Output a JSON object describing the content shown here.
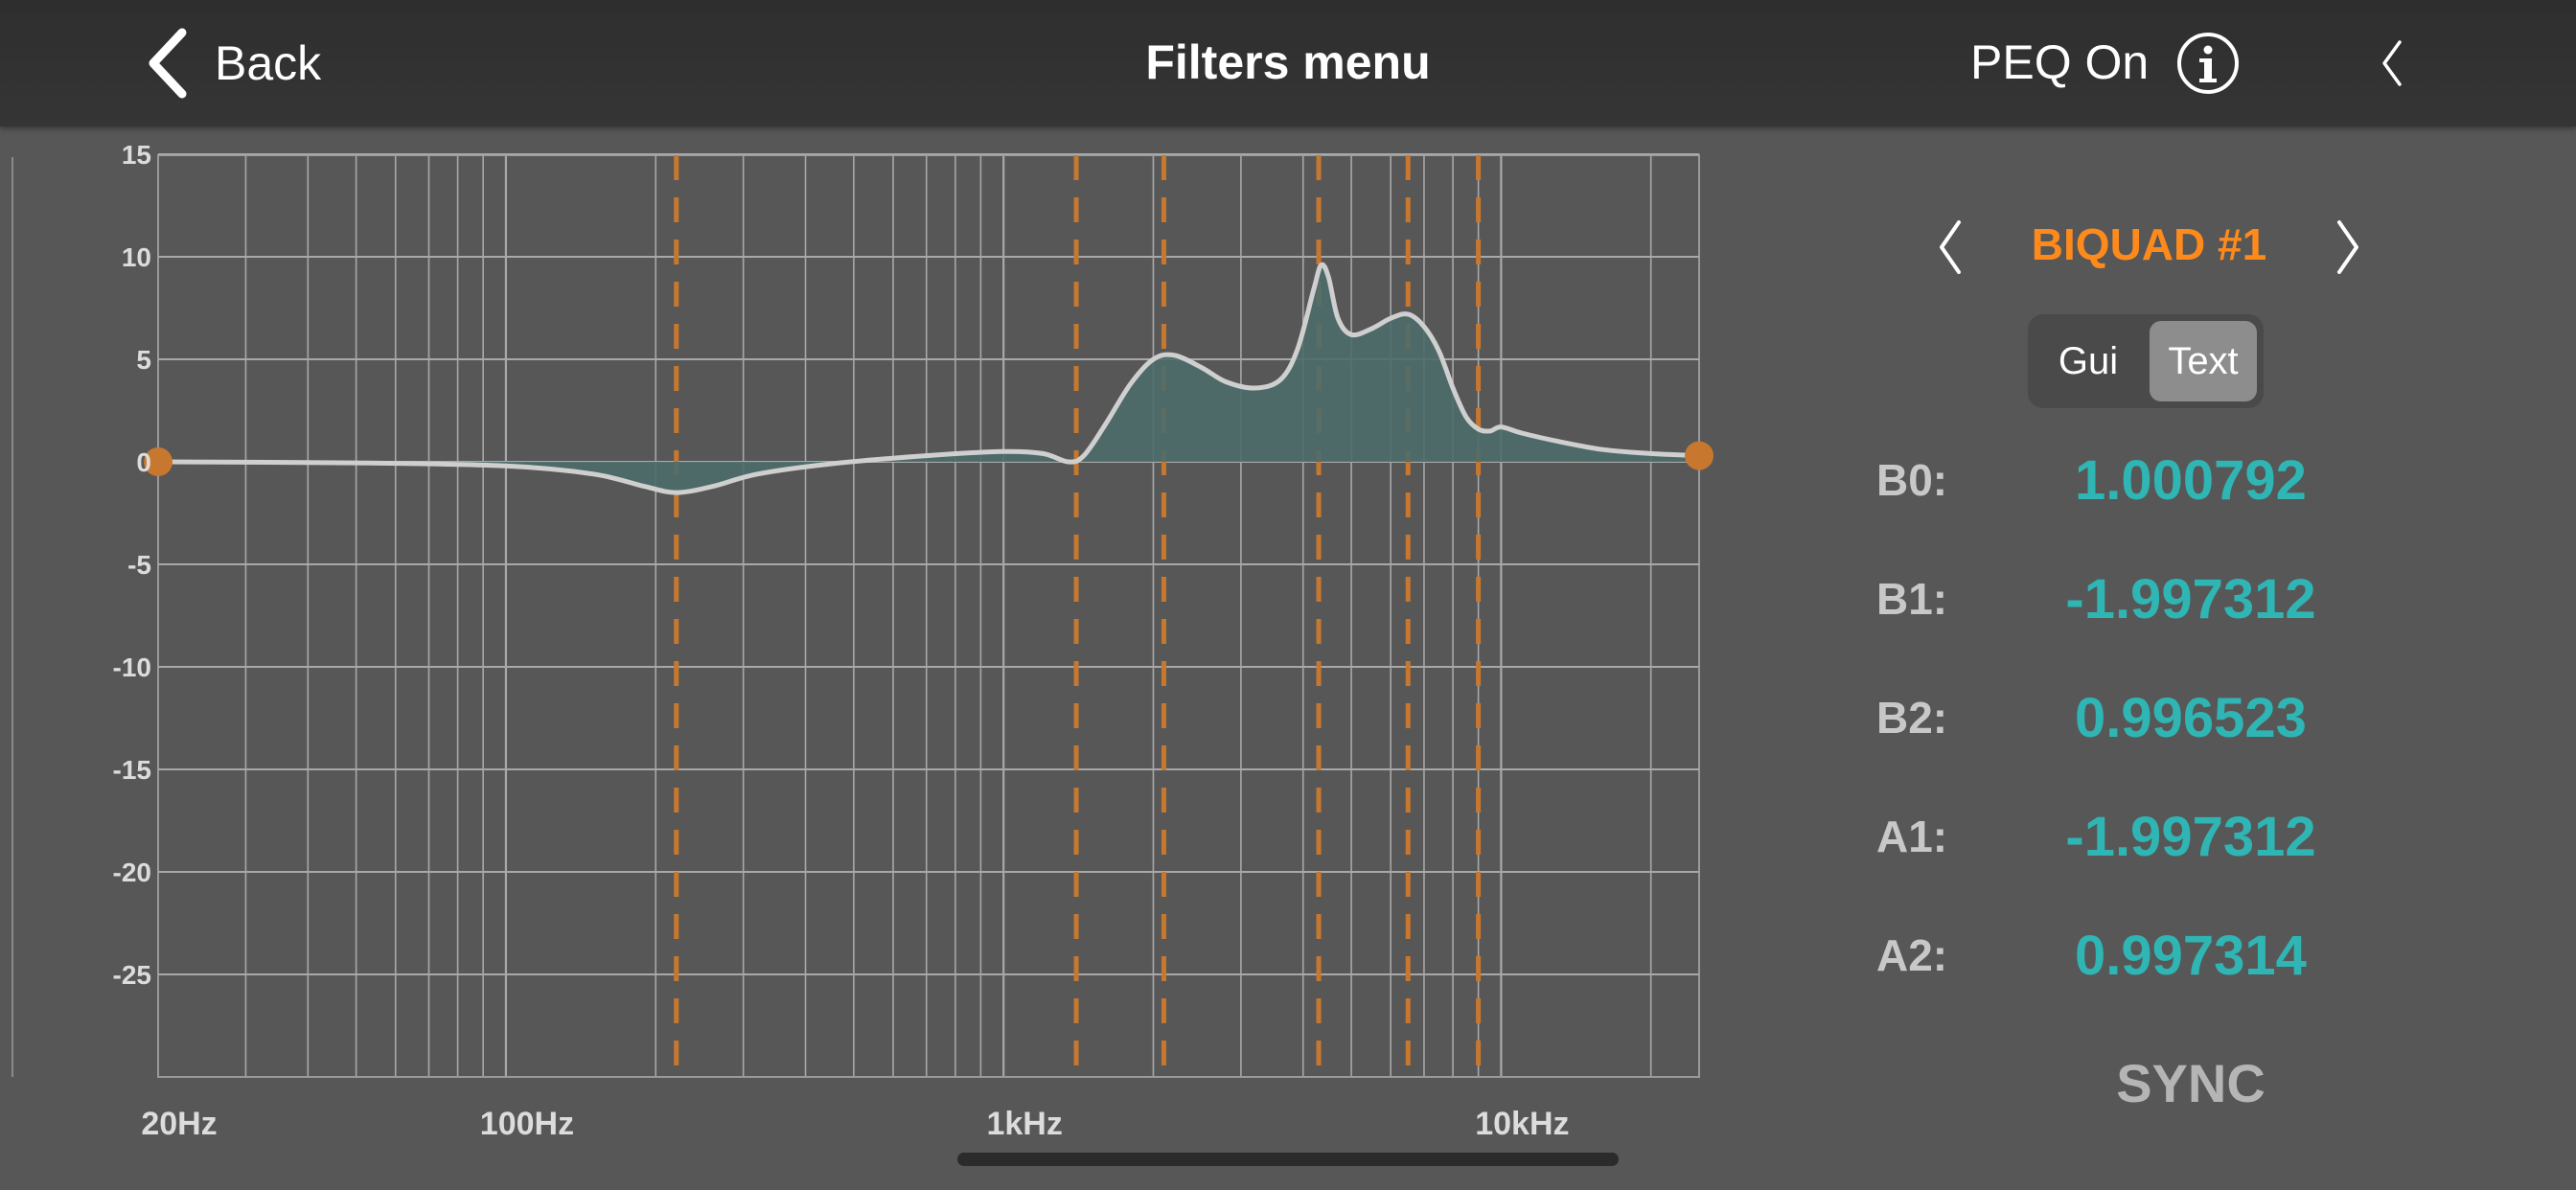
{
  "header": {
    "back_label": "Back",
    "title": "Filters menu",
    "peq_status": "PEQ On"
  },
  "panel": {
    "biquad_title": "BIQUAD #1",
    "mode_options": [
      "Gui",
      "Text"
    ],
    "selected_mode": "Text",
    "coefficients": [
      {
        "label": "B0:",
        "value": "1.000792"
      },
      {
        "label": "B1:",
        "value": "-1.997312"
      },
      {
        "label": "B2:",
        "value": "0.996523"
      },
      {
        "label": "A1:",
        "value": "-1.997312"
      },
      {
        "label": "A2:",
        "value": "0.997314"
      }
    ],
    "sync_label": "SYNC"
  },
  "colors": {
    "accent": "#ff8a1c",
    "value": "#2fb5b3",
    "marker": "#c8782e",
    "fill": "#4d6b6a",
    "curve": "#cfcfcf"
  },
  "chart_data": {
    "type": "area",
    "x_scale": "log",
    "xlim": [
      20,
      25000
    ],
    "ylim": [
      -30,
      15
    ],
    "y_ticks": [
      15,
      10,
      5,
      0,
      -5,
      -10,
      -15,
      -20,
      -25
    ],
    "y_tick_labels": [
      "15",
      "10",
      "5",
      "0",
      "-5",
      "-10",
      "-15",
      "-20",
      "-25"
    ],
    "x_tick_labels": [
      {
        "value": 20,
        "label": "20Hz"
      },
      {
        "value": 100,
        "label": "100Hz"
      },
      {
        "value": 1000,
        "label": "1kHz"
      },
      {
        "value": 10000,
        "label": "10kHz"
      }
    ],
    "grid": true,
    "filter_markers_hz": [
      220,
      1400,
      2100,
      4300,
      6500,
      9000
    ],
    "endpoint_markers": [
      {
        "x": 20,
        "y": 0
      },
      {
        "x": 25000,
        "y": 0.3
      }
    ],
    "curve": {
      "x": [
        20,
        50,
        100,
        150,
        190,
        220,
        260,
        320,
        450,
        700,
        1000,
        1200,
        1350,
        1450,
        1600,
        1800,
        2000,
        2200,
        2500,
        2800,
        3200,
        3600,
        3900,
        4200,
        4350,
        4500,
        4700,
        5000,
        5500,
        6000,
        6500,
        7000,
        7500,
        8000,
        8500,
        9000,
        9500,
        10000,
        11000,
        13000,
        16000,
        20000,
        25000
      ],
      "y": [
        0,
        -0.05,
        -0.2,
        -0.6,
        -1.2,
        -1.5,
        -1.2,
        -0.6,
        -0.1,
        0.3,
        0.5,
        0.4,
        0.0,
        0.3,
        1.8,
        3.8,
        5.0,
        5.2,
        4.6,
        3.9,
        3.6,
        4.0,
        5.5,
        8.4,
        9.6,
        9.0,
        7.0,
        6.2,
        6.5,
        7.0,
        7.2,
        6.6,
        5.4,
        3.6,
        2.2,
        1.6,
        1.5,
        1.7,
        1.4,
        1.0,
        0.6,
        0.4,
        0.3
      ]
    }
  }
}
